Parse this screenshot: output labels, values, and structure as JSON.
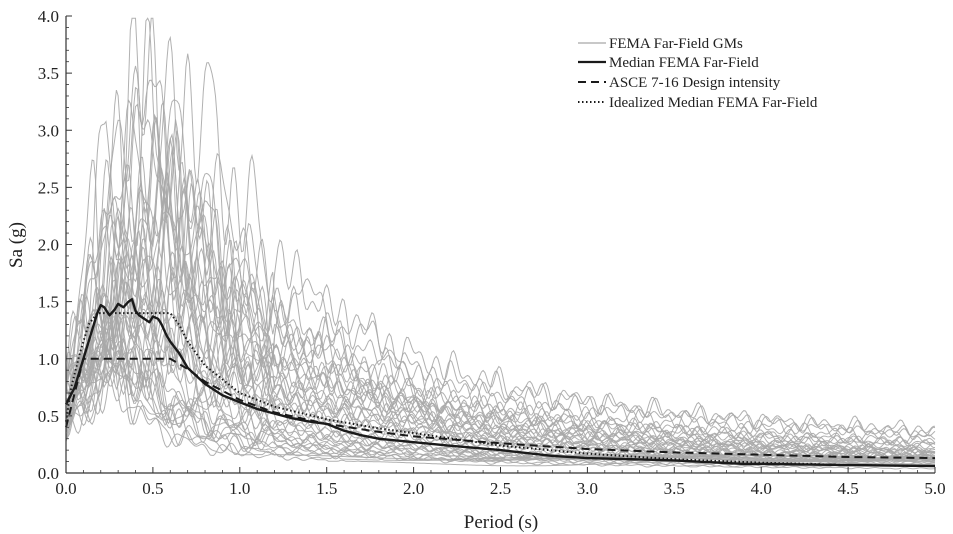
{
  "chart_data": {
    "type": "line",
    "xlabel": "Period (s)",
    "ylabel": "Sa (g)",
    "xlim": [
      0,
      5
    ],
    "ylim": [
      0,
      4
    ],
    "xticks": [
      "0.0",
      "0.5",
      "1.0",
      "1.5",
      "2.0",
      "2.5",
      "3.0",
      "3.5",
      "4.0",
      "4.5",
      "5.0"
    ],
    "yticks": [
      "0.0",
      "0.5",
      "1.0",
      "1.5",
      "2.0",
      "2.5",
      "3.0",
      "3.5",
      "4.0"
    ],
    "grid": false,
    "legend_position": "top-right",
    "legend": [
      {
        "label": "FEMA Far-Field GMs",
        "style": "thin-gray"
      },
      {
        "label": "Median FEMA Far-Field",
        "style": "solid-black"
      },
      {
        "label": "ASCE 7-16 Design intensity",
        "style": "dashed-black"
      },
      {
        "label": "Idealized Median FEMA Far-Field",
        "style": "dotted-black"
      }
    ],
    "colors": {
      "ground_motions": "#a8a8a8",
      "median": "#1a1a1a",
      "design": "#1a1a1a",
      "idealized": "#1a1a1a"
    },
    "series": [
      {
        "name": "Median FEMA Far-Field",
        "x": [
          0,
          0.05,
          0.1,
          0.15,
          0.18,
          0.2,
          0.22,
          0.25,
          0.28,
          0.3,
          0.33,
          0.36,
          0.38,
          0.4,
          0.42,
          0.45,
          0.48,
          0.5,
          0.53,
          0.55,
          0.58,
          0.6,
          0.65,
          0.7,
          0.8,
          0.9,
          1.0,
          1.1,
          1.2,
          1.3,
          1.4,
          1.5,
          1.6,
          1.7,
          1.8,
          2.0,
          2.2,
          2.5,
          2.8,
          3.0,
          3.5,
          3.9,
          4.0,
          4.5,
          5.0
        ],
        "y": [
          0.6,
          0.75,
          1.0,
          1.25,
          1.4,
          1.47,
          1.45,
          1.38,
          1.43,
          1.48,
          1.45,
          1.5,
          1.52,
          1.42,
          1.38,
          1.35,
          1.32,
          1.37,
          1.35,
          1.3,
          1.2,
          1.15,
          1.05,
          0.92,
          0.78,
          0.68,
          0.62,
          0.56,
          0.52,
          0.48,
          0.45,
          0.43,
          0.37,
          0.33,
          0.3,
          0.27,
          0.24,
          0.2,
          0.15,
          0.13,
          0.11,
          0.08,
          0.08,
          0.07,
          0.06
        ]
      },
      {
        "name": "ASCE 7-16 Design intensity",
        "x": [
          0,
          0.05,
          0.1,
          0.15,
          0.2,
          0.3,
          0.4,
          0.5,
          0.6,
          0.7,
          0.8,
          1.0,
          1.2,
          1.5,
          1.8,
          2.0,
          2.5,
          3.0,
          3.5,
          4.0,
          4.5,
          5.0
        ],
        "y": [
          0.4,
          0.7,
          1.0,
          1.0,
          1.0,
          1.0,
          1.0,
          1.0,
          1.0,
          0.91,
          0.8,
          0.64,
          0.53,
          0.43,
          0.36,
          0.32,
          0.26,
          0.21,
          0.18,
          0.16,
          0.14,
          0.13
        ]
      },
      {
        "name": "Idealized Median FEMA Far-Field",
        "x": [
          0,
          0.03,
          0.08,
          0.13,
          0.18,
          0.2,
          0.3,
          0.4,
          0.5,
          0.6,
          0.65,
          0.7,
          0.8,
          1.0,
          1.2,
          1.5,
          1.8,
          2.0,
          2.5,
          3.0,
          3.5,
          4.0,
          4.5,
          5.0
        ],
        "y": [
          0.45,
          0.75,
          1.05,
          1.3,
          1.4,
          1.4,
          1.4,
          1.4,
          1.4,
          1.4,
          1.3,
          1.15,
          0.94,
          0.7,
          0.58,
          0.47,
          0.39,
          0.35,
          0.24,
          0.17,
          0.12,
          0.09,
          0.07,
          0.06
        ]
      }
    ]
  }
}
